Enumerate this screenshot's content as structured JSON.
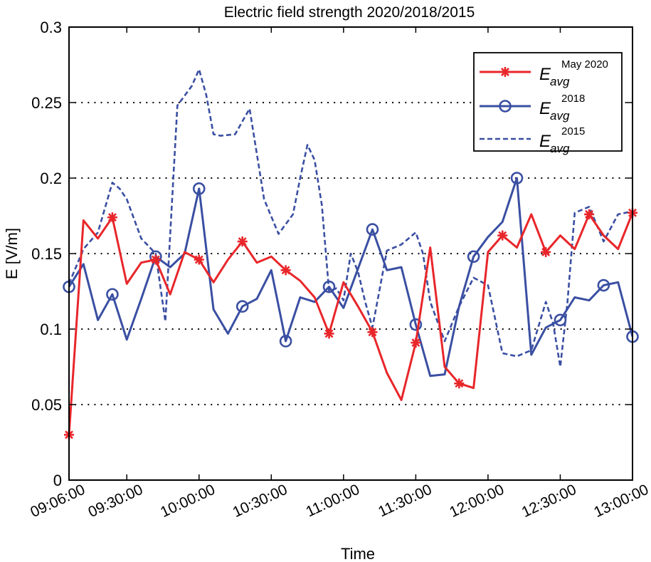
{
  "chart_data": {
    "type": "line",
    "title": "Electric field strength 2020/2018/2015",
    "xlabel": "Time",
    "ylabel": "E [V/m]",
    "xlim_minutes": [
      546,
      780
    ],
    "ylim": [
      0,
      0.3
    ],
    "x_ticks": [
      {
        "label": "09:06:00",
        "minutes": 546
      },
      {
        "label": "09:30:00",
        "minutes": 570
      },
      {
        "label": "10:00:00",
        "minutes": 600
      },
      {
        "label": "10:30:00",
        "minutes": 630
      },
      {
        "label": "11:00:00",
        "minutes": 660
      },
      {
        "label": "11:30:00",
        "minutes": 690
      },
      {
        "label": "12:00:00",
        "minutes": 720
      },
      {
        "label": "12:30:00",
        "minutes": 750
      },
      {
        "label": "13:00:00",
        "minutes": 780
      }
    ],
    "y_ticks": [
      0,
      0.05,
      0.1,
      0.15,
      0.2,
      0.25,
      0.3
    ],
    "y_tick_labels": [
      "0",
      "0.05",
      "0.1",
      "0.15",
      "0.2",
      "0.25",
      "0.3"
    ],
    "grid": "horizontal dotted",
    "legend_position": "top-right",
    "series": [
      {
        "name": "E_avg May 2020",
        "legend_base": "E",
        "legend_sub": "avg",
        "legend_sup": "May 2020",
        "color": "#e8262a",
        "line_style": "solid",
        "marker": "asterisk",
        "minutes": [
          546,
          552,
          558,
          564,
          570,
          576,
          582,
          588,
          594,
          600,
          606,
          612,
          618,
          624,
          630,
          636,
          642,
          648,
          654,
          660,
          666,
          672,
          678,
          684,
          690,
          696,
          702,
          708,
          714,
          720,
          726,
          732,
          738,
          744,
          750,
          756,
          762,
          768,
          774,
          780
        ],
        "values": [
          0.03,
          0.172,
          0.16,
          0.174,
          0.13,
          0.144,
          0.146,
          0.123,
          0.151,
          0.146,
          0.131,
          0.146,
          0.158,
          0.144,
          0.148,
          0.139,
          0.132,
          0.121,
          0.097,
          0.131,
          0.115,
          0.098,
          0.071,
          0.053,
          0.091,
          0.154,
          0.075,
          0.064,
          0.061,
          0.151,
          0.162,
          0.154,
          0.176,
          0.151,
          0.162,
          0.153,
          0.176,
          0.162,
          0.153,
          0.177
        ],
        "marker_indices": [
          0,
          3,
          6,
          9,
          12,
          15,
          18,
          21,
          24,
          27,
          30,
          33,
          36,
          39
        ]
      },
      {
        "name": "E_avg 2018",
        "legend_base": "E",
        "legend_sub": "avg",
        "legend_sup": "2018",
        "color": "#3a4fa2",
        "line_style": "solid",
        "marker": "circle",
        "minutes": [
          546,
          552,
          558,
          564,
          570,
          576,
          582,
          588,
          594,
          600,
          606,
          612,
          618,
          624,
          630,
          636,
          642,
          648,
          654,
          660,
          666,
          672,
          678,
          684,
          690,
          696,
          702,
          708,
          714,
          720,
          726,
          732,
          738,
          744,
          750,
          756,
          762,
          768,
          774,
          780
        ],
        "values": [
          0.128,
          0.143,
          0.106,
          0.123,
          0.093,
          0.12,
          0.148,
          0.141,
          0.15,
          0.193,
          0.113,
          0.097,
          0.115,
          0.12,
          0.139,
          0.092,
          0.121,
          0.118,
          0.128,
          0.114,
          0.14,
          0.166,
          0.139,
          0.141,
          0.103,
          0.069,
          0.07,
          0.115,
          0.148,
          0.161,
          0.171,
          0.2,
          0.083,
          0.101,
          0.106,
          0.121,
          0.119,
          0.129,
          0.131,
          0.095
        ],
        "marker_indices": [
          0,
          3,
          6,
          9,
          12,
          15,
          18,
          21,
          24,
          28,
          31,
          34,
          37,
          39
        ]
      },
      {
        "name": "E_avg 2015",
        "legend_base": "E",
        "legend_sub": "avg",
        "legend_sup": "2015",
        "color": "#3a4fa2",
        "line_style": "dashed",
        "marker": "none",
        "minutes": [
          546,
          552,
          558,
          564,
          567,
          570,
          576,
          582,
          586,
          591,
          597,
          600,
          603,
          606,
          609,
          615,
          621,
          627,
          633,
          639,
          642,
          645,
          648,
          651,
          654,
          657,
          660,
          663,
          666,
          669,
          672,
          678,
          684,
          690,
          693,
          696,
          702,
          708,
          714,
          720,
          726,
          732,
          738,
          744,
          747,
          750,
          753,
          756,
          762,
          768,
          774,
          780
        ],
        "values": [
          0.13,
          0.153,
          0.164,
          0.197,
          0.193,
          0.186,
          0.16,
          0.15,
          0.105,
          0.248,
          0.261,
          0.272,
          0.255,
          0.229,
          0.228,
          0.229,
          0.246,
          0.186,
          0.163,
          0.176,
          0.2,
          0.222,
          0.212,
          0.182,
          0.125,
          0.127,
          0.119,
          0.15,
          0.138,
          0.118,
          0.101,
          0.152,
          0.156,
          0.164,
          0.15,
          0.118,
          0.092,
          0.115,
          0.134,
          0.129,
          0.084,
          0.082,
          0.086,
          0.118,
          0.104,
          0.075,
          0.118,
          0.177,
          0.181,
          0.158,
          0.176,
          0.178
        ]
      }
    ]
  }
}
